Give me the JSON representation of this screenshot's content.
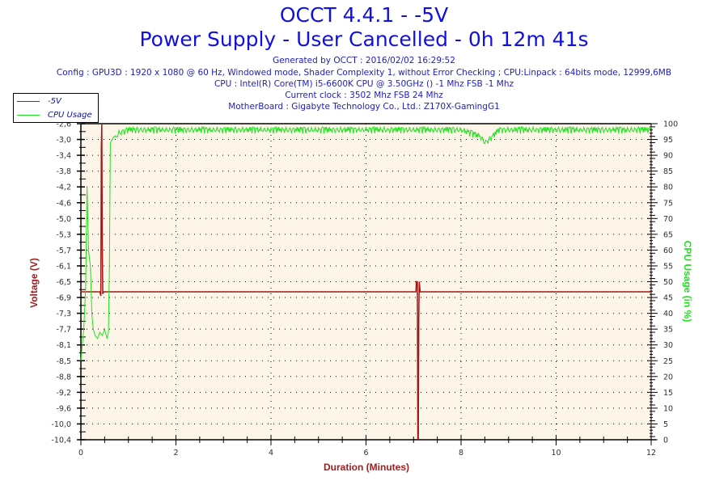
{
  "header": {
    "title": "OCCT 4.4.1 - -5V",
    "subtitle": "Power Supply - User Cancelled - 0h 12m 41s",
    "generated": "Generated by OCCT : 2016/02/02 16:29:52",
    "config": "Config : GPU3D : 1920 x 1080 @ 60 Hz, Windowed mode, Shader Complexity 1, without Error Checking ; CPU:Linpack : 64bits mode, 12999,6MB",
    "cpu": "CPU : Intel(R) Core(TM) i5-6600K CPU @ 3.50GHz () -1 Mhz FSB -1 Mhz",
    "clock": "Current clock : 3502 Mhz FSB 24 Mhz",
    "motherboard": "MotherBoard : Gigabyte Technology Co., Ltd.: Z170X-GamingG1"
  },
  "legend": {
    "items": [
      {
        "label": "-5V",
        "color": "#a01818"
      },
      {
        "label": "CPU Usage",
        "color": "#20e020"
      }
    ]
  },
  "colors": {
    "plot_bg": "#fdf6e8",
    "voltage": "#a01818",
    "cpu": "#20e020",
    "title": "#1010e0"
  },
  "chart_data": {
    "type": "line",
    "title": "OCCT 4.4.1 - -5V",
    "subtitle": "Power Supply - User Cancelled - 0h 12m 41s",
    "xlabel": "Duration (Minutes)",
    "ylabel": "Voltage (V)",
    "y2label": "CPU Usage (in %)",
    "xlim": [
      0,
      12
    ],
    "ylim": [
      -10.4,
      -2.6
    ],
    "y2lim": [
      0,
      100
    ],
    "x_ticks": [
      "0",
      "2",
      "4",
      "6",
      "8",
      "10",
      "12"
    ],
    "y_ticks": [
      "-2,6",
      "-3,0",
      "-3,4",
      "-3,8",
      "-4,2",
      "-4,6",
      "-5,0",
      "-5,3",
      "-5,7",
      "-6,1",
      "-6,5",
      "-6,9",
      "-7,3",
      "-7,7",
      "-8,1",
      "-8,5",
      "-8,8",
      "-9,2",
      "-9,6",
      "-10,0",
      "-10,4"
    ],
    "y2_ticks": [
      "100",
      "95",
      "90",
      "85",
      "80",
      "75",
      "70",
      "65",
      "60",
      "55",
      "50",
      "45",
      "40",
      "35",
      "30",
      "25",
      "20",
      "15",
      "10",
      "5",
      "0"
    ],
    "grid": true,
    "legend_position": "top-left",
    "series": [
      {
        "name": "-5V",
        "axis": "left",
        "points": [
          [
            0.0,
            -6.75
          ],
          [
            0.4,
            -6.75
          ],
          [
            0.42,
            -6.85
          ],
          [
            0.43,
            -3.2
          ],
          [
            0.44,
            -2.6
          ],
          [
            0.45,
            -5.5
          ],
          [
            0.46,
            -6.8
          ],
          [
            0.48,
            -6.75
          ],
          [
            7.05,
            -6.75
          ],
          [
            7.06,
            -6.5
          ],
          [
            7.08,
            -6.5
          ],
          [
            7.09,
            -10.4
          ],
          [
            7.1,
            -10.4
          ],
          [
            7.11,
            -7.4
          ],
          [
            7.12,
            -6.5
          ],
          [
            7.14,
            -6.75
          ],
          [
            12.0,
            -6.75
          ]
        ]
      },
      {
        "name": "CPU Usage",
        "axis": "right",
        "points": [
          [
            0.0,
            25
          ],
          [
            0.03,
            30
          ],
          [
            0.06,
            35
          ],
          [
            0.1,
            48
          ],
          [
            0.13,
            80
          ],
          [
            0.16,
            60
          ],
          [
            0.2,
            55
          ],
          [
            0.23,
            40
          ],
          [
            0.26,
            35
          ],
          [
            0.3,
            33
          ],
          [
            0.35,
            32
          ],
          [
            0.4,
            34
          ],
          [
            0.45,
            33
          ],
          [
            0.5,
            35
          ],
          [
            0.55,
            32
          ],
          [
            0.58,
            34
          ],
          [
            0.6,
            55
          ],
          [
            0.62,
            94
          ],
          [
            0.7,
            96
          ],
          [
            0.8,
            98
          ],
          [
            1.0,
            99
          ],
          [
            2.0,
            99
          ],
          [
            4.0,
            99
          ],
          [
            6.0,
            99
          ],
          [
            8.0,
            99
          ],
          [
            8.4,
            97
          ],
          [
            8.5,
            95
          ],
          [
            8.6,
            96
          ],
          [
            8.8,
            99
          ],
          [
            10.0,
            99
          ],
          [
            12.0,
            99
          ]
        ]
      }
    ]
  },
  "axes": {
    "xlabel": "Duration (Minutes)",
    "ylabel": "Voltage (V)",
    "y2label": "CPU Usage (in %)"
  }
}
